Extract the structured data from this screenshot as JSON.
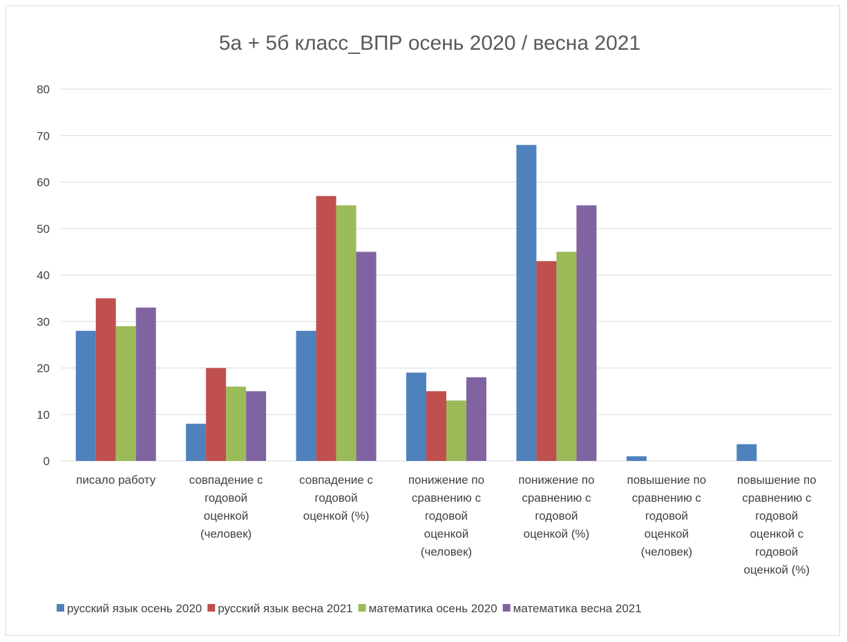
{
  "chart_data": {
    "type": "bar",
    "title": "5а + 5б класс_ВПР осень 2020 / весна 2021",
    "xlabel": "",
    "ylabel": "",
    "ylim": [
      0,
      80
    ],
    "yticks": [
      0,
      10,
      20,
      30,
      40,
      50,
      60,
      70,
      80
    ],
    "grid": true,
    "legend_position": "bottom",
    "categories": [
      [
        "писало работу"
      ],
      [
        "совпадение с",
        "годовой",
        "оценкой",
        "(человек)"
      ],
      [
        "совпадение с",
        "годовой",
        "оценкой (%)"
      ],
      [
        "понижение по",
        "сравнению с",
        "годовой",
        "оценкой",
        "(человек)"
      ],
      [
        "понижение по",
        "сравнению с",
        "годовой",
        "оценкой (%)"
      ],
      [
        "повышение по",
        "сравнению с",
        "годовой",
        "оценкой",
        "(человек)"
      ],
      [
        "повышение по",
        "сравнению с",
        "годовой",
        "оценкой с",
        "годовой",
        "оценкой (%)"
      ]
    ],
    "series": [
      {
        "name": "русский язык осень 2020",
        "color": "#4f81bd",
        "values": [
          28,
          8,
          28,
          19,
          68,
          1,
          3.6
        ]
      },
      {
        "name": "русский язык весна 2021",
        "color": "#c0504d",
        "values": [
          35,
          20,
          57,
          15,
          43,
          0,
          0
        ]
      },
      {
        "name": "математика осень 2020",
        "color": "#9bbb59",
        "values": [
          29,
          16,
          55,
          13,
          45,
          0,
          0
        ]
      },
      {
        "name": "математика весна 2021",
        "color": "#8064a2",
        "values": [
          33,
          15,
          45,
          18,
          55,
          0,
          0
        ]
      }
    ]
  }
}
